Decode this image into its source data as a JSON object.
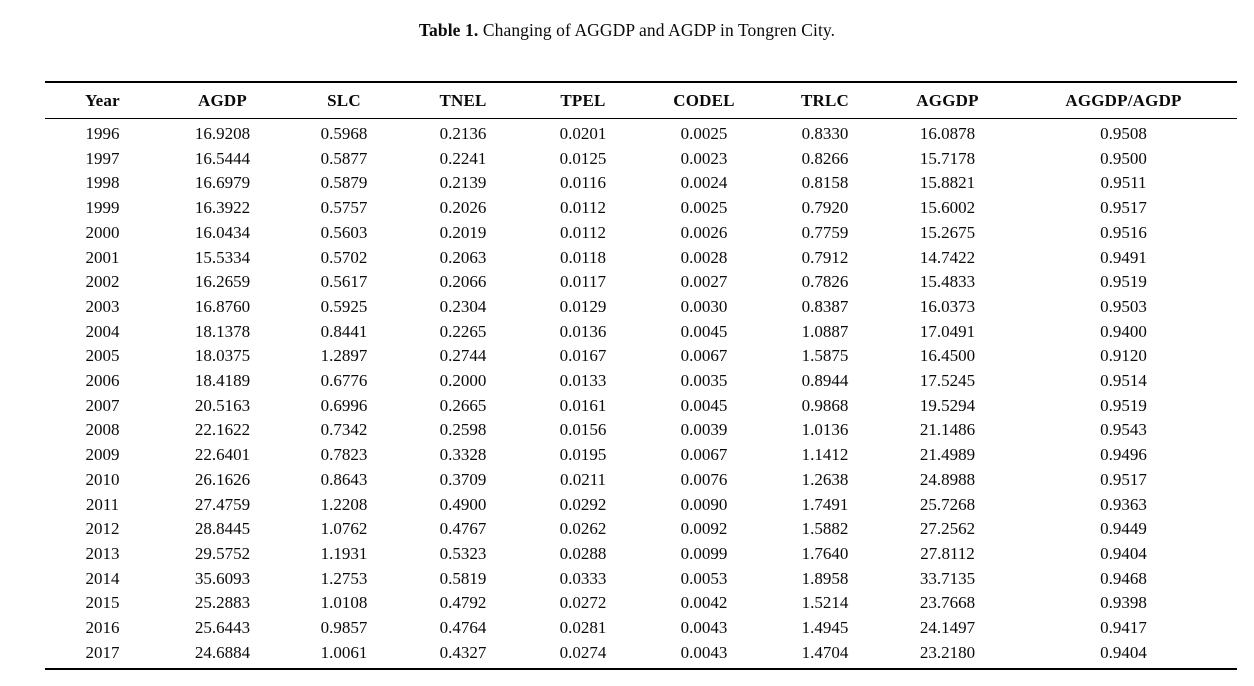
{
  "colors": {
    "background": "#ffffff",
    "text": "#0a0a0a",
    "rule": "#000000"
  },
  "title": {
    "label": "Table 1.",
    "caption": " Changing of AGGDP and AGDP in Tongren City."
  },
  "table": {
    "columns": [
      "Year",
      "AGDP",
      "SLC",
      "TNEL",
      "TPEL",
      "CODEL",
      "TRLC",
      "AGGDP",
      "AGGDP/AGDP"
    ],
    "rows": [
      [
        "1996",
        "16.9208",
        "0.5968",
        "0.2136",
        "0.0201",
        "0.0025",
        "0.8330",
        "16.0878",
        "0.9508"
      ],
      [
        "1997",
        "16.5444",
        "0.5877",
        "0.2241",
        "0.0125",
        "0.0023",
        "0.8266",
        "15.7178",
        "0.9500"
      ],
      [
        "1998",
        "16.6979",
        "0.5879",
        "0.2139",
        "0.0116",
        "0.0024",
        "0.8158",
        "15.8821",
        "0.9511"
      ],
      [
        "1999",
        "16.3922",
        "0.5757",
        "0.2026",
        "0.0112",
        "0.0025",
        "0.7920",
        "15.6002",
        "0.9517"
      ],
      [
        "2000",
        "16.0434",
        "0.5603",
        "0.2019",
        "0.0112",
        "0.0026",
        "0.7759",
        "15.2675",
        "0.9516"
      ],
      [
        "2001",
        "15.5334",
        "0.5702",
        "0.2063",
        "0.0118",
        "0.0028",
        "0.7912",
        "14.7422",
        "0.9491"
      ],
      [
        "2002",
        "16.2659",
        "0.5617",
        "0.2066",
        "0.0117",
        "0.0027",
        "0.7826",
        "15.4833",
        "0.9519"
      ],
      [
        "2003",
        "16.8760",
        "0.5925",
        "0.2304",
        "0.0129",
        "0.0030",
        "0.8387",
        "16.0373",
        "0.9503"
      ],
      [
        "2004",
        "18.1378",
        "0.8441",
        "0.2265",
        "0.0136",
        "0.0045",
        "1.0887",
        "17.0491",
        "0.9400"
      ],
      [
        "2005",
        "18.0375",
        "1.2897",
        "0.2744",
        "0.0167",
        "0.0067",
        "1.5875",
        "16.4500",
        "0.9120"
      ],
      [
        "2006",
        "18.4189",
        "0.6776",
        "0.2000",
        "0.0133",
        "0.0035",
        "0.8944",
        "17.5245",
        "0.9514"
      ],
      [
        "2007",
        "20.5163",
        "0.6996",
        "0.2665",
        "0.0161",
        "0.0045",
        "0.9868",
        "19.5294",
        "0.9519"
      ],
      [
        "2008",
        "22.1622",
        "0.7342",
        "0.2598",
        "0.0156",
        "0.0039",
        "1.0136",
        "21.1486",
        "0.9543"
      ],
      [
        "2009",
        "22.6401",
        "0.7823",
        "0.3328",
        "0.0195",
        "0.0067",
        "1.1412",
        "21.4989",
        "0.9496"
      ],
      [
        "2010",
        "26.1626",
        "0.8643",
        "0.3709",
        "0.0211",
        "0.0076",
        "1.2638",
        "24.8988",
        "0.9517"
      ],
      [
        "2011",
        "27.4759",
        "1.2208",
        "0.4900",
        "0.0292",
        "0.0090",
        "1.7491",
        "25.7268",
        "0.9363"
      ],
      [
        "2012",
        "28.8445",
        "1.0762",
        "0.4767",
        "0.0262",
        "0.0092",
        "1.5882",
        "27.2562",
        "0.9449"
      ],
      [
        "2013",
        "29.5752",
        "1.1931",
        "0.5323",
        "0.0288",
        "0.0099",
        "1.7640",
        "27.8112",
        "0.9404"
      ],
      [
        "2014",
        "35.6093",
        "1.2753",
        "0.5819",
        "0.0333",
        "0.0053",
        "1.8958",
        "33.7135",
        "0.9468"
      ],
      [
        "2015",
        "25.2883",
        "1.0108",
        "0.4792",
        "0.0272",
        "0.0042",
        "1.5214",
        "23.7668",
        "0.9398"
      ],
      [
        "2016",
        "25.6443",
        "0.9857",
        "0.4764",
        "0.0281",
        "0.0043",
        "1.4945",
        "24.1497",
        "0.9417"
      ],
      [
        "2017",
        "24.6884",
        "1.0061",
        "0.4327",
        "0.0274",
        "0.0043",
        "1.4704",
        "23.2180",
        "0.9404"
      ]
    ]
  }
}
